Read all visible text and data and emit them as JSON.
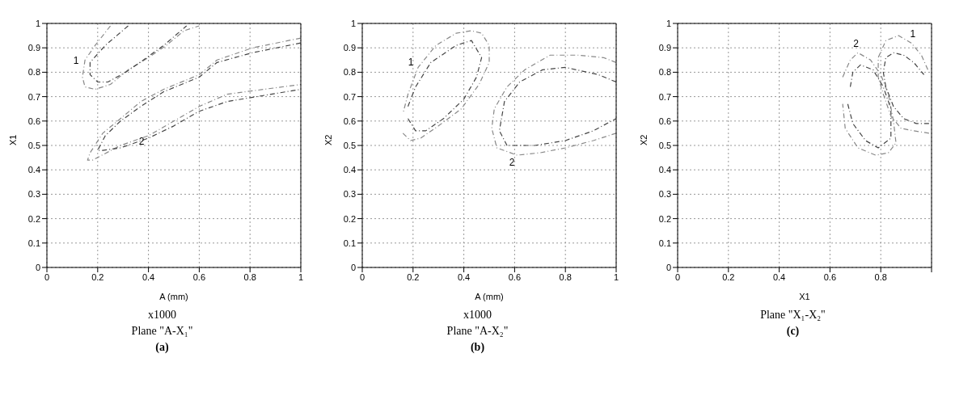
{
  "chart_data": [
    {
      "type": "line",
      "xlabel": "A (mm)",
      "ylabel": "X1",
      "xlim": [
        0,
        1
      ],
      "ylim": [
        0,
        1
      ],
      "xticks": [
        0,
        0.2,
        0.4,
        0.6,
        0.8,
        1
      ],
      "yticks": [
        0,
        0.1,
        0.2,
        0.3,
        0.4,
        0.5,
        0.6,
        0.7,
        0.8,
        0.9,
        1
      ],
      "grid": true,
      "line_style": "dashed",
      "marker": "none",
      "series": [
        {
          "color": "#888888",
          "x": [
            0.25,
            0.19,
            0.15,
            0.14,
            0.15,
            0.19,
            0.25,
            0.32,
            0.4,
            0.47,
            0.54,
            0.6
          ],
          "values": [
            0.99,
            0.91,
            0.85,
            0.78,
            0.74,
            0.73,
            0.75,
            0.81,
            0.86,
            0.91,
            0.97,
            0.99
          ]
        },
        {
          "color": "#444444",
          "x": [
            0.32,
            0.23,
            0.17,
            0.17,
            0.2,
            0.24,
            0.31,
            0.38,
            0.46,
            0.55
          ],
          "values": [
            0.99,
            0.91,
            0.84,
            0.79,
            0.76,
            0.76,
            0.8,
            0.85,
            0.91,
            0.99
          ]
        },
        {
          "color": "#888888",
          "x": [
            1,
            0.81,
            0.67,
            0.6,
            0.46,
            0.37,
            0.29,
            0.22,
            0.17,
            0.16,
            0.18,
            0.29,
            0.4,
            0.5,
            0.6,
            0.71,
            1
          ],
          "values": [
            0.94,
            0.9,
            0.85,
            0.79,
            0.73,
            0.68,
            0.61,
            0.55,
            0.47,
            0.44,
            0.44,
            0.5,
            0.54,
            0.6,
            0.66,
            0.71,
            0.75
          ]
        },
        {
          "color": "#444444",
          "x": [
            1,
            0.81,
            0.67,
            0.6,
            0.46,
            0.37,
            0.29,
            0.23,
            0.2,
            0.22,
            0.29,
            0.4,
            0.5,
            0.6,
            0.71,
            1
          ],
          "values": [
            0.92,
            0.88,
            0.84,
            0.78,
            0.72,
            0.66,
            0.6,
            0.54,
            0.48,
            0.48,
            0.49,
            0.53,
            0.58,
            0.64,
            0.68,
            0.73
          ]
        }
      ],
      "annotations": [
        {
          "text": "1",
          "x": 0.15,
          "y": 0.85
        },
        {
          "text": "2",
          "x": 0.4,
          "y": 0.54
        },
        "x1000",
        "Plane \"A-X₁\"",
        "(a)"
      ]
    },
    {
      "type": "line",
      "xlabel": "A (mm)",
      "ylabel": "X2",
      "xlim": [
        0,
        1
      ],
      "ylim": [
        0,
        1
      ],
      "xticks": [
        0,
        0.2,
        0.4,
        0.6,
        0.8,
        1
      ],
      "yticks": [
        0,
        0.1,
        0.2,
        0.3,
        0.4,
        0.5,
        0.6,
        0.7,
        0.8,
        0.9,
        1
      ],
      "grid": true,
      "line_style": "dashed",
      "marker": "none",
      "series": [
        {
          "color": "#888888",
          "x": [
            0.16,
            0.19,
            0.23,
            0.3,
            0.39,
            0.46,
            0.5,
            0.5,
            0.47,
            0.43,
            0.37,
            0.29,
            0.22,
            0.18,
            0.16
          ],
          "values": [
            0.55,
            0.52,
            0.53,
            0.58,
            0.65,
            0.75,
            0.84,
            0.91,
            0.96,
            0.97,
            0.96,
            0.91,
            0.82,
            0.71,
            0.63
          ]
        },
        {
          "color": "#444444",
          "x": [
            0.18,
            0.21,
            0.25,
            0.32,
            0.4,
            0.45,
            0.47,
            0.43,
            0.37,
            0.27,
            0.21,
            0.18
          ],
          "values": [
            0.61,
            0.56,
            0.56,
            0.61,
            0.69,
            0.78,
            0.86,
            0.93,
            0.91,
            0.84,
            0.74,
            0.66
          ]
        },
        {
          "color": "#888888",
          "x": [
            1,
            0.95,
            0.85,
            0.74,
            0.64,
            0.57,
            0.52,
            0.51,
            0.53,
            0.61,
            0.7,
            0.8,
            0.91,
            1
          ],
          "values": [
            0.84,
            0.86,
            0.87,
            0.87,
            0.81,
            0.74,
            0.65,
            0.57,
            0.49,
            0.46,
            0.47,
            0.49,
            0.52,
            0.55
          ]
        },
        {
          "color": "#444444",
          "x": [
            1,
            0.93,
            0.8,
            0.71,
            0.62,
            0.56,
            0.54,
            0.57,
            0.68,
            0.8,
            0.91,
            1
          ],
          "values": [
            0.76,
            0.79,
            0.82,
            0.81,
            0.76,
            0.68,
            0.56,
            0.5,
            0.5,
            0.52,
            0.56,
            0.61
          ]
        }
      ],
      "annotations": [
        {
          "text": "1",
          "x": 0.22,
          "y": 0.82
        },
        {
          "text": "2",
          "x": 0.61,
          "y": 0.46
        },
        "x1000",
        "Plane \"A-X₂\"",
        "(b)"
      ]
    },
    {
      "type": "line",
      "xlabel": "X1",
      "ylabel": "X2",
      "xlim": [
        0,
        1
      ],
      "ylim": [
        0,
        1
      ],
      "xticks": [
        0,
        0.2,
        0.4,
        0.6,
        0.8,
        {
          "value": 1,
          "label": null
        }
      ],
      "yticks": [
        0,
        0.1,
        0.2,
        0.3,
        0.4,
        0.5,
        0.6,
        0.7,
        0.8,
        0.9,
        1
      ],
      "grid": true,
      "line_style": "dashed",
      "marker": "none",
      "series": [
        {
          "color": "#888888",
          "x": [
            0.65,
            0.68,
            0.71,
            0.76,
            0.8,
            0.83,
            0.85,
            0.86,
            0.83,
            0.78,
            0.71,
            0.66,
            0.65
          ],
          "values": [
            0.78,
            0.85,
            0.88,
            0.85,
            0.79,
            0.71,
            0.6,
            0.51,
            0.47,
            0.46,
            0.49,
            0.57,
            0.67
          ]
        },
        {
          "color": "#444444",
          "x": [
            0.68,
            0.69,
            0.72,
            0.77,
            0.81,
            0.84,
            0.84,
            0.84,
            0.79,
            0.74,
            0.69,
            0.67
          ],
          "values": [
            0.74,
            0.8,
            0.83,
            0.81,
            0.74,
            0.65,
            0.57,
            0.53,
            0.49,
            0.52,
            0.59,
            0.67
          ]
        },
        {
          "color": "#888888",
          "x": [
            0.99,
            0.93,
            0.88,
            0.84,
            0.81,
            0.79,
            0.79,
            0.82,
            0.87,
            0.92,
            0.96,
            0.99
          ],
          "values": [
            0.55,
            0.56,
            0.57,
            0.62,
            0.71,
            0.78,
            0.86,
            0.93,
            0.95,
            0.92,
            0.87,
            0.8
          ]
        },
        {
          "color": "#444444",
          "x": [
            0.99,
            0.94,
            0.89,
            0.85,
            0.82,
            0.81,
            0.82,
            0.85,
            0.89,
            0.93,
            0.97
          ],
          "values": [
            0.59,
            0.59,
            0.61,
            0.66,
            0.74,
            0.8,
            0.86,
            0.88,
            0.87,
            0.84,
            0.79
          ]
        }
      ],
      "annotations": [
        {
          "text": "2",
          "x": 0.71,
          "y": 0.88
        },
        {
          "text": "1",
          "x": 0.92,
          "y": 0.92
        },
        "Plane \"X₁-X₂\"",
        "(c)"
      ]
    }
  ]
}
